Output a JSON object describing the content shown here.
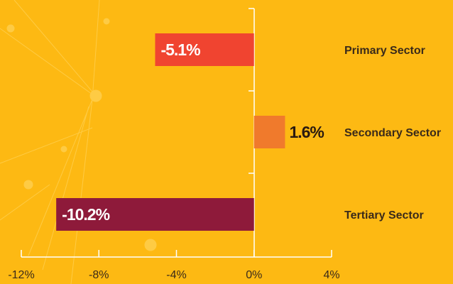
{
  "chart_data": {
    "type": "bar",
    "orientation": "horizontal",
    "categories": [
      "Primary Sector",
      "Secondary Sector",
      "Tertiary Sector"
    ],
    "values": [
      -5.1,
      1.6,
      -10.2
    ],
    "value_labels": [
      "-5.1%",
      "1.6%",
      "-10.2%"
    ],
    "colors": [
      "#f04430",
      "#f07a2c",
      "#8e1a3a"
    ],
    "xlim": [
      -12,
      4
    ],
    "xticks": [
      {
        "value": -12,
        "label": "-12%"
      },
      {
        "value": -8,
        "label": "-8%"
      },
      {
        "value": -4,
        "label": "-4%"
      },
      {
        "value": 0,
        "label": "0%"
      },
      {
        "value": 4,
        "label": "4%"
      }
    ]
  }
}
